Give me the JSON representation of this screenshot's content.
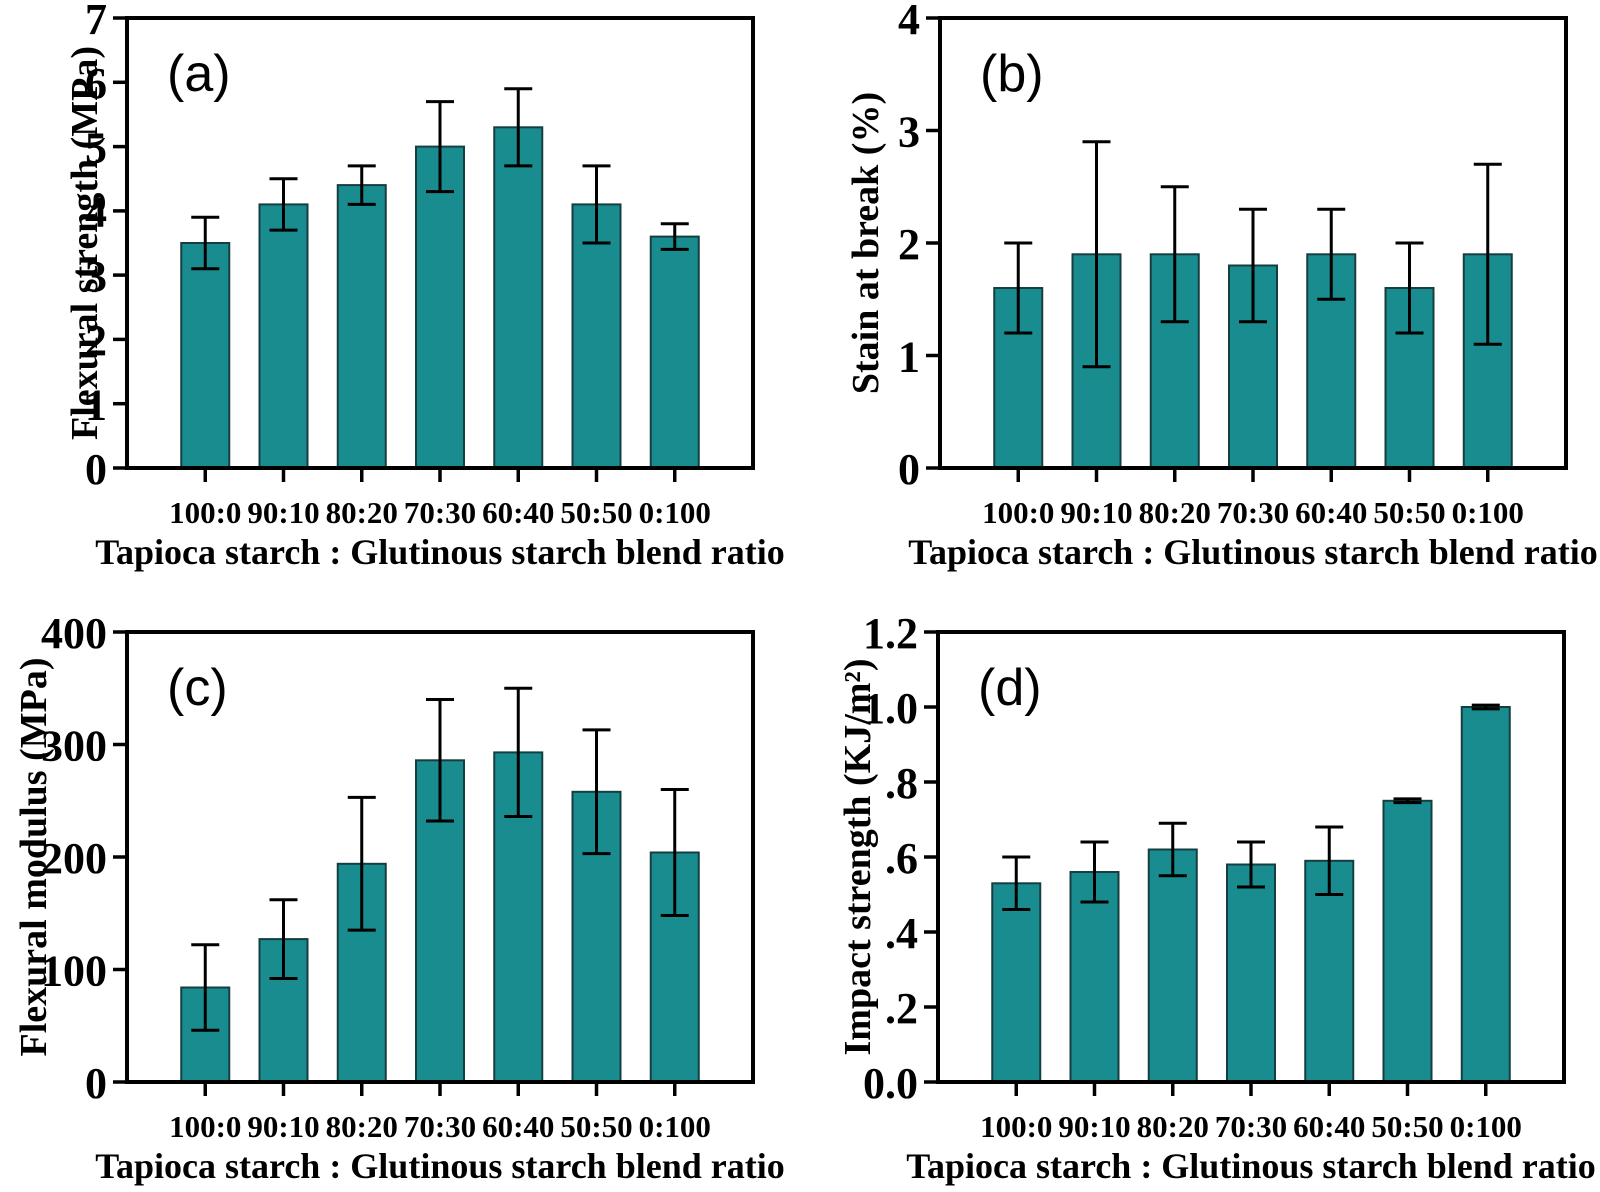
{
  "figure": {
    "bar_fill": "#198C8F",
    "bar_edge": "#153E40",
    "axis_color": "#000000",
    "text_color": "#000000",
    "background": "#ffffff"
  },
  "chart_data": [
    {
      "type": "bar",
      "id": "a",
      "panel_label": "(a)",
      "ylabel": "Flexural strength (MPa)",
      "xlabel": "Tapioca starch : Glutinous starch blend ratio",
      "categories": [
        "100:0",
        "90:10",
        "80:20",
        "70:30",
        "60:40",
        "50:50",
        "0:100"
      ],
      "values": [
        3.5,
        4.1,
        4.4,
        5.0,
        5.3,
        4.1,
        3.6
      ],
      "errors": [
        0.4,
        0.4,
        0.3,
        0.7,
        0.6,
        0.6,
        0.2
      ],
      "ylim": [
        0,
        7
      ],
      "ytick_values": [
        0,
        1,
        2,
        3,
        4,
        5,
        6,
        7
      ],
      "ytick_labels": [
        "0",
        "1",
        "2",
        "3",
        "4",
        "5",
        "6",
        "7"
      ],
      "grid": false,
      "legend": "none"
    },
    {
      "type": "bar",
      "id": "b",
      "panel_label": "(b)",
      "ylabel": "Stain at break (%)",
      "xlabel": "Tapioca starch : Glutinous starch blend ratio",
      "categories": [
        "100:0",
        "90:10",
        "80:20",
        "70:30",
        "60:40",
        "50:50",
        "0:100"
      ],
      "values": [
        1.6,
        1.9,
        1.9,
        1.8,
        1.9,
        1.6,
        1.9
      ],
      "errors": [
        0.4,
        1.0,
        0.6,
        0.5,
        0.4,
        0.4,
        0.8
      ],
      "ylim": [
        0,
        4
      ],
      "ytick_values": [
        0,
        1,
        2,
        3,
        4
      ],
      "ytick_labels": [
        "0",
        "1",
        "2",
        "3",
        "4"
      ],
      "grid": false,
      "legend": "none"
    },
    {
      "type": "bar",
      "id": "c",
      "panel_label": "(c)",
      "ylabel": "Flexural modulus (MPa)",
      "xlabel": "Tapioca starch : Glutinous starch blend ratio",
      "categories": [
        "100:0",
        "90:10",
        "80:20",
        "70:30",
        "60:40",
        "50:50",
        "0:100"
      ],
      "values": [
        84,
        127,
        194,
        286,
        293,
        258,
        204
      ],
      "errors": [
        38,
        35,
        59,
        54,
        57,
        55,
        56
      ],
      "ylim": [
        0,
        400
      ],
      "ytick_values": [
        0,
        100,
        200,
        300,
        400
      ],
      "ytick_labels": [
        "0",
        "100",
        "200",
        "300",
        "400"
      ],
      "grid": false,
      "legend": "none"
    },
    {
      "type": "bar",
      "id": "d",
      "panel_label": "(d)",
      "ylabel": "Impact strength (KJ/m²)",
      "xlabel": "Tapioca starch : Glutinous starch blend ratio",
      "categories": [
        "100:0",
        "90:10",
        "80:20",
        "70:30",
        "60:40",
        "50:50",
        "0:100"
      ],
      "values": [
        0.53,
        0.56,
        0.62,
        0.58,
        0.59,
        0.75,
        1.0
      ],
      "errors": [
        0.07,
        0.08,
        0.07,
        0.06,
        0.09,
        0.005,
        0.005
      ],
      "ylim": [
        0,
        1.2
      ],
      "ytick_values": [
        0,
        0.2,
        0.4,
        0.6,
        0.8,
        1.0,
        1.2
      ],
      "ytick_labels": [
        "0.0",
        ".2",
        ".4",
        ".6",
        ".8",
        "1.0",
        "1.2"
      ],
      "grid": false,
      "legend": "none"
    }
  ]
}
